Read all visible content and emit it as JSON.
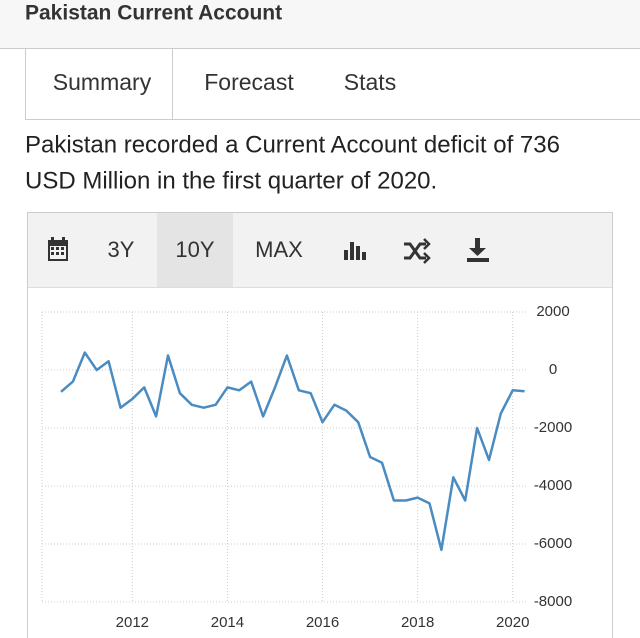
{
  "header": {
    "title": "Pakistan Current Account"
  },
  "tabs": [
    "Summary",
    "Forecast",
    "Stats"
  ],
  "summary": {
    "line1": "Pakistan recorded a Current Account deficit of 736",
    "line2": "USD Million in the first quarter of 2020."
  },
  "toolbar": [
    "3Y",
    "10Y",
    "MAX"
  ],
  "chart_data": {
    "type": "line",
    "x": [
      2010.5,
      2010.75,
      2011.0,
      2011.25,
      2011.5,
      2011.75,
      2012.0,
      2012.25,
      2012.5,
      2012.75,
      2013.0,
      2013.25,
      2013.5,
      2013.75,
      2014.0,
      2014.25,
      2014.5,
      2014.75,
      2015.0,
      2015.25,
      2015.5,
      2015.75,
      2016.0,
      2016.25,
      2016.5,
      2016.75,
      2017.0,
      2017.25,
      2017.5,
      2017.75,
      2018.0,
      2018.25,
      2018.5,
      2018.75,
      2019.0,
      2019.25,
      2019.5,
      2019.75,
      2020.0,
      2020.25
    ],
    "series": [
      {
        "color": "#4a8cc2",
        "values": [
          -750,
          -400,
          600,
          0,
          300,
          -1300,
          -1000,
          -600,
          -1600,
          500,
          -800,
          -1200,
          -1300,
          -1200,
          -600,
          -700,
          -400,
          -1600,
          -600,
          500,
          -700,
          -800,
          -1800,
          -1200,
          -1400,
          -1800,
          -3000,
          -3200,
          -4500,
          -4500,
          -4400,
          -4600,
          -6200,
          -3700,
          -4500,
          -2000,
          -3100,
          -1500,
          -700,
          -736
        ]
      }
    ],
    "xlim": [
      2010.1,
      2020.3
    ],
    "xticks": [
      2012,
      2014,
      2016,
      2018,
      2020
    ],
    "ylim": [
      -8000,
      2000
    ],
    "yticks": [
      2000,
      0,
      -2000,
      -4000,
      -6000,
      -8000
    ],
    "grid": true
  }
}
